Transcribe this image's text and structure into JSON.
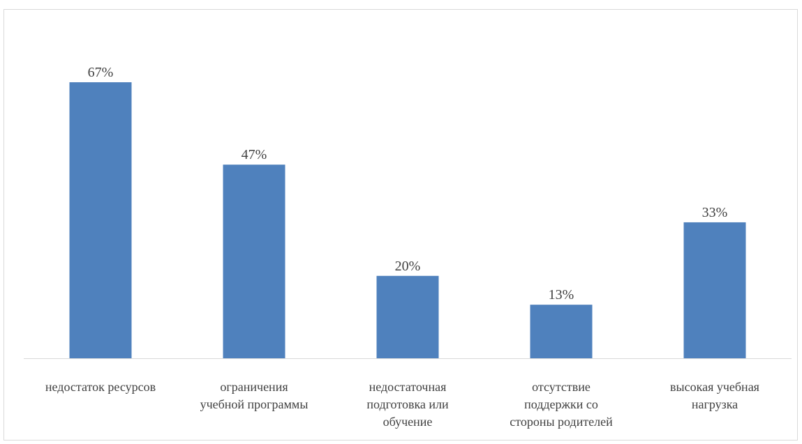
{
  "chart_data": {
    "type": "bar",
    "categories": [
      [
        "недостаток ресурсов"
      ],
      [
        "ограничения",
        "учебной программы"
      ],
      [
        "недостаточная",
        "подготовка или",
        "обучение"
      ],
      [
        "отсутствие",
        "поддержки со",
        "стороны родителей"
      ],
      [
        "высокая учебная",
        "нагрузка"
      ]
    ],
    "values": [
      67,
      47,
      20,
      13,
      33
    ],
    "data_labels": [
      "67%",
      "47%",
      "20%",
      "13%",
      "33%"
    ],
    "unit": "%",
    "ylim": [
      0,
      67
    ],
    "grid": false,
    "legend": "none",
    "bar_color": "#4f81bd",
    "axis_color": "#d9d9d9",
    "text_color": "#404040"
  }
}
